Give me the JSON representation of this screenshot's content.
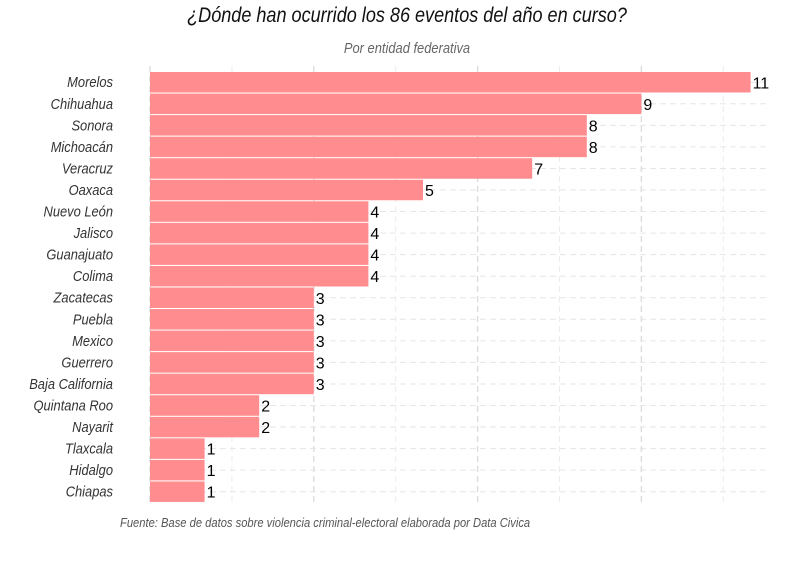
{
  "chart_data": {
    "type": "bar",
    "orientation": "horizontal",
    "title": "¿Dónde han ocurrido los 86 eventos del año en curso?",
    "subtitle": "Por entidad federativa",
    "caption": "Fuente: Base de datos sobre violencia criminal-electoral elaborada por Data Civica",
    "categories": [
      "Morelos",
      "Chihuahua",
      "Sonora",
      "Michoacán",
      "Veracruz",
      "Oaxaca",
      "Nuevo León",
      "Jalisco",
      "Guanajuato",
      "Colima",
      "Zacatecas",
      "Puebla",
      "Mexico",
      "Guerrero",
      "Baja California",
      "Quintana Roo",
      "Nayarit",
      "Tlaxcala",
      "Hidalgo",
      "Chiapas"
    ],
    "values": [
      11,
      9,
      8,
      8,
      7,
      5,
      4,
      4,
      4,
      4,
      3,
      3,
      3,
      3,
      3,
      2,
      2,
      1,
      1,
      1
    ],
    "xlim": [
      0,
      11.5
    ],
    "grid": true,
    "bar_color": "#ff8c8e",
    "data_labels": true
  }
}
